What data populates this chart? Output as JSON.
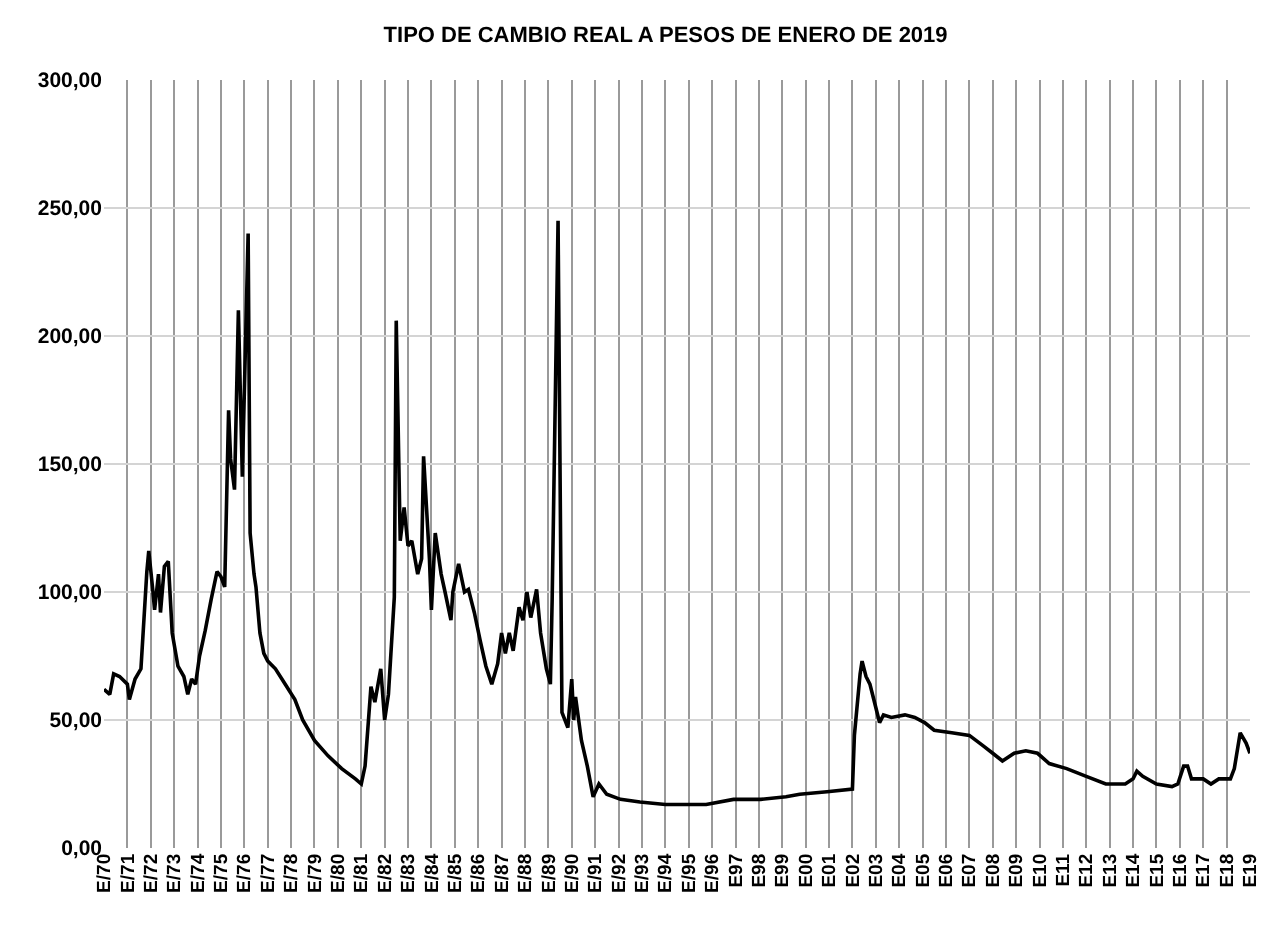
{
  "chart_data": {
    "type": "line",
    "title": "TIPO DE CAMBIO REAL A PESOS DE ENERO DE 2019",
    "x": [
      "1970-01",
      "1970-04",
      "1970-06",
      "1970-09",
      "1971-01",
      "1971-02",
      "1971-05",
      "1971-08",
      "1971-11",
      "1971-12",
      "1972-02",
      "1972-03",
      "1972-05",
      "1972-06",
      "1972-08",
      "1972-10",
      "1972-12",
      "1973-03",
      "1973-06",
      "1973-08",
      "1973-10",
      "1973-12",
      "1974-02",
      "1974-05",
      "1974-08",
      "1974-11",
      "1975-01",
      "1975-03",
      "1975-05",
      "1975-06",
      "1975-08",
      "1975-10",
      "1975-12",
      "1976-03",
      "1976-04",
      "1976-06",
      "1976-07",
      "1976-09",
      "1976-11",
      "1977-01",
      "1977-05",
      "1977-10",
      "1978-03",
      "1978-07",
      "1979-01",
      "1979-08",
      "1980-03",
      "1980-10",
      "1981-01",
      "1981-03",
      "1981-06",
      "1981-08",
      "1981-11",
      "1982-01",
      "1982-03",
      "1982-06",
      "1982-07",
      "1982-09",
      "1982-11",
      "1983-01",
      "1983-03",
      "1983-06",
      "1983-08",
      "1983-09",
      "1983-12",
      "1984-01",
      "1984-03",
      "1984-06",
      "1984-08",
      "1984-11",
      "1984-12",
      "1985-03",
      "1985-06",
      "1985-08",
      "1985-11",
      "1986-02",
      "1986-05",
      "1986-08",
      "1986-11",
      "1987-01",
      "1987-03",
      "1987-05",
      "1987-07",
      "1987-10",
      "1987-12",
      "1988-02",
      "1988-04",
      "1988-07",
      "1988-09",
      "1988-12",
      "1989-02",
      "1989-03",
      "1989-06",
      "1989-08",
      "1989-11",
      "1990-01",
      "1990-02",
      "1990-03",
      "1990-06",
      "1990-09",
      "1990-12",
      "1991-03",
      "1991-07",
      "1992-02",
      "1992-12",
      "1994-01",
      "1994-12",
      "1995-10",
      "1996-12",
      "1998-02",
      "1999-03",
      "1999-10",
      "2000-12",
      "2002-01",
      "2002-02",
      "2002-05",
      "2002-06",
      "2002-08",
      "2002-10",
      "2002-12",
      "2003-03",
      "2003-05",
      "2003-09",
      "2004-04",
      "2004-09",
      "2005-02",
      "2005-07",
      "2006-04",
      "2007-01",
      "2007-08",
      "2008-01",
      "2008-06",
      "2008-12",
      "2009-06",
      "2009-12",
      "2010-06",
      "2011-03",
      "2012-01",
      "2012-11",
      "2013-09",
      "2014-01",
      "2014-03",
      "2014-06",
      "2015-01",
      "2015-09",
      "2015-12",
      "2016-03",
      "2016-05",
      "2016-07",
      "2017-01",
      "2017-05",
      "2017-09",
      "2018-03",
      "2018-05",
      "2018-08",
      "2018-11",
      "2019-01"
    ],
    "series": [
      {
        "color": "#000000",
        "values": [
          62,
          60,
          68,
          67,
          64,
          58,
          66,
          70,
          108,
          116,
          101,
          93,
          107,
          92,
          110,
          112,
          84,
          71,
          67,
          60,
          66,
          64,
          75,
          85,
          97,
          108,
          106,
          102,
          171,
          152,
          140,
          210,
          145,
          240,
          123,
          107,
          102,
          84,
          76,
          73,
          70,
          64,
          58,
          50,
          42,
          36,
          31,
          27,
          25,
          32,
          63,
          57,
          70,
          50,
          60,
          98,
          206,
          120,
          133,
          118,
          120,
          107,
          113,
          153,
          113,
          93,
          123,
          107,
          100,
          89,
          100,
          111,
          100,
          101,
          92,
          81,
          71,
          64,
          72,
          84,
          76,
          84,
          77,
          94,
          89,
          100,
          90,
          101,
          84,
          70,
          64,
          97,
          245,
          53,
          47,
          66,
          50,
          59,
          42,
          32,
          20,
          25,
          21,
          19,
          18,
          17,
          17,
          17,
          19,
          19,
          20,
          21,
          22,
          23,
          44,
          68,
          73,
          67,
          64,
          58,
          49,
          52,
          51,
          52,
          51,
          49,
          46,
          45,
          44,
          40,
          37,
          34,
          37,
          38,
          37,
          33,
          31,
          28,
          25,
          25,
          27,
          30,
          28,
          25,
          24,
          25,
          32,
          32,
          27,
          27,
          25,
          27,
          27,
          31,
          45,
          41,
          37
        ]
      }
    ],
    "xlim": [
      "1970-01",
      "2019-01"
    ],
    "xticks": [
      {
        "value": "1970-01",
        "label": "E/70"
      },
      {
        "value": "1971-01",
        "label": "E/71"
      },
      {
        "value": "1972-01",
        "label": "E/72"
      },
      {
        "value": "1973-01",
        "label": "E/73"
      },
      {
        "value": "1974-01",
        "label": "E/74"
      },
      {
        "value": "1975-01",
        "label": "E/75"
      },
      {
        "value": "1976-01",
        "label": "E/76"
      },
      {
        "value": "1977-01",
        "label": "E/77"
      },
      {
        "value": "1978-01",
        "label": "E/78"
      },
      {
        "value": "1979-01",
        "label": "E/79"
      },
      {
        "value": "1980-01",
        "label": "E/80"
      },
      {
        "value": "1981-01",
        "label": "E/81"
      },
      {
        "value": "1982-01",
        "label": "E/82"
      },
      {
        "value": "1983-01",
        "label": "E/83"
      },
      {
        "value": "1984-01",
        "label": "E/84"
      },
      {
        "value": "1985-01",
        "label": "E/85"
      },
      {
        "value": "1986-01",
        "label": "E/86"
      },
      {
        "value": "1987-01",
        "label": "E/87"
      },
      {
        "value": "1988-01",
        "label": "E/88"
      },
      {
        "value": "1989-01",
        "label": "E/89"
      },
      {
        "value": "1990-01",
        "label": "E/90"
      },
      {
        "value": "1991-01",
        "label": "E/91"
      },
      {
        "value": "1992-01",
        "label": "E/92"
      },
      {
        "value": "1993-01",
        "label": "E/93"
      },
      {
        "value": "1994-01",
        "label": "E/94"
      },
      {
        "value": "1995-01",
        "label": "E/95"
      },
      {
        "value": "1996-01",
        "label": "E/96"
      },
      {
        "value": "1997-01",
        "label": "E97"
      },
      {
        "value": "1998-01",
        "label": "E98"
      },
      {
        "value": "1999-01",
        "label": "E99"
      },
      {
        "value": "2000-01",
        "label": "E00"
      },
      {
        "value": "2001-01",
        "label": "E01"
      },
      {
        "value": "2002-01",
        "label": "E02"
      },
      {
        "value": "2003-01",
        "label": "E03"
      },
      {
        "value": "2004-01",
        "label": "E04"
      },
      {
        "value": "2005-01",
        "label": "E05"
      },
      {
        "value": "2006-01",
        "label": "E06"
      },
      {
        "value": "2007-01",
        "label": "E07"
      },
      {
        "value": "2008-01",
        "label": "E08"
      },
      {
        "value": "2009-01",
        "label": "E09"
      },
      {
        "value": "2010-01",
        "label": "E10"
      },
      {
        "value": "2011-01",
        "label": "E11"
      },
      {
        "value": "2012-01",
        "label": "E12"
      },
      {
        "value": "2013-01",
        "label": "E13"
      },
      {
        "value": "2014-01",
        "label": "E14"
      },
      {
        "value": "2015-01",
        "label": "E15"
      },
      {
        "value": "2016-01",
        "label": "E16"
      },
      {
        "value": "2017-01",
        "label": "E17"
      },
      {
        "value": "2018-01",
        "label": "E18"
      },
      {
        "value": "2019-01",
        "label": "E19"
      }
    ],
    "ylim": [
      0,
      300
    ],
    "yticks": [
      {
        "value": 0,
        "label": "0,00"
      },
      {
        "value": 50,
        "label": "50,00"
      },
      {
        "value": 100,
        "label": "100,00"
      },
      {
        "value": 150,
        "label": "150,00"
      },
      {
        "value": 200,
        "label": "200,00"
      },
      {
        "value": 250,
        "label": "250,00"
      },
      {
        "value": 300,
        "label": "300,00"
      }
    ],
    "grid": true
  }
}
